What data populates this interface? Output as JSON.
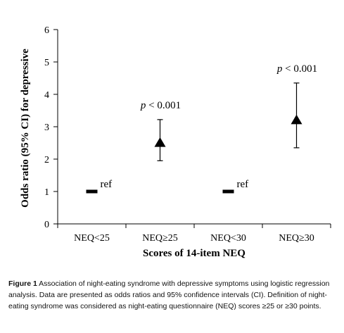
{
  "chart_data": {
    "type": "scatter",
    "categories": [
      "NEQ<25",
      "NEQ≥25",
      "NEQ<30",
      "NEQ≥30"
    ],
    "points": [
      {
        "category": "NEQ<25",
        "value": 1.0,
        "marker": "dash",
        "ci_low": null,
        "ci_high": null,
        "annotation": "ref"
      },
      {
        "category": "NEQ≥25",
        "value": 2.5,
        "marker": "triangle",
        "ci_low": 1.95,
        "ci_high": 3.22,
        "annotation": "p < 0.001"
      },
      {
        "category": "NEQ<30",
        "value": 1.0,
        "marker": "dash",
        "ci_low": null,
        "ci_high": null,
        "annotation": "ref"
      },
      {
        "category": "NEQ≥30",
        "value": 3.2,
        "marker": "triangle",
        "ci_low": 2.35,
        "ci_high": 4.35,
        "annotation": "p < 0.001"
      }
    ],
    "ylabel": "Odds ratio (95% CI) for depressive",
    "xlabel": "Scores of 14-item NEQ",
    "ylim": [
      0,
      6
    ],
    "yticks": [
      0,
      1,
      2,
      3,
      4,
      5,
      6
    ],
    "grid": false
  },
  "caption": {
    "label": "Figure 1",
    "text": " Association of night-eating syndrome with depressive symptoms using logistic regression analysis. Data are presented as odds ratios and 95% confidence intervals (CI). Definition of night-eating syndrome was considered as night-eating questionnaire (NEQ) scores ≥25 or ≥30 points."
  }
}
